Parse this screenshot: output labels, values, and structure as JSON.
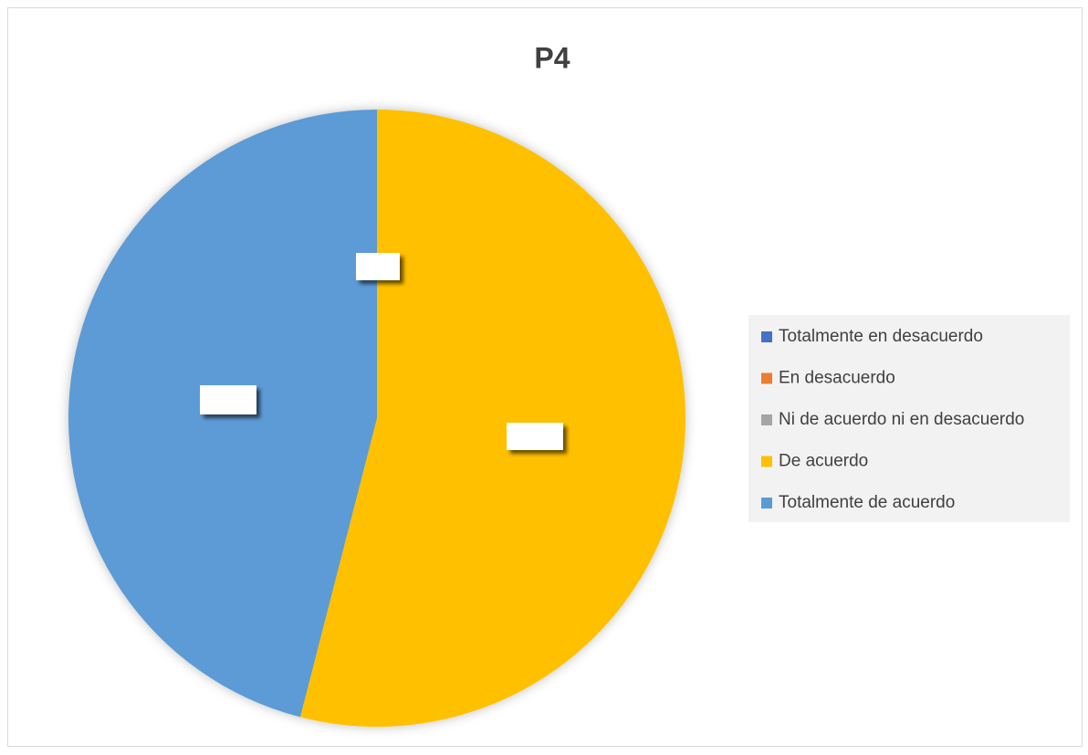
{
  "chart_data": {
    "type": "pie",
    "title": "P4",
    "categories": [
      "Totalmente en desacuerdo",
      "En desacuerdo",
      "Ni de acuerdo ni en desacuerdo",
      "De acuerdo",
      "Totalmente de acuerdo"
    ],
    "values": [
      0,
      0,
      0,
      54,
      46
    ],
    "colors": [
      "#4472c4",
      "#ed7d31",
      "#a5a5a5",
      "#ffc000",
      "#5b9bd5"
    ],
    "legend": "right"
  }
}
